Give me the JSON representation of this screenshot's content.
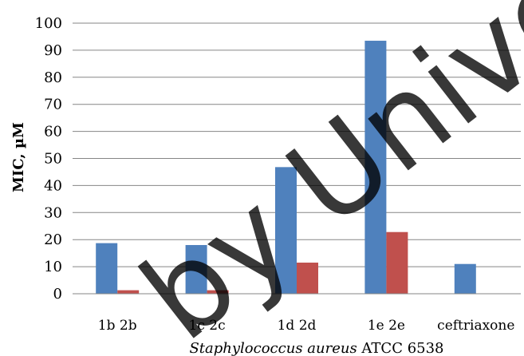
{
  "chart_data": {
    "type": "bar",
    "categories": [
      "1b 2b",
      "1c 2c",
      "1d 2d",
      "1e 2e",
      "ceftriaxone"
    ],
    "series": [
      {
        "color": "#4F81BD",
        "values": [
          18.7,
          18.0,
          46.8,
          93.5,
          11.0
        ]
      },
      {
        "color": "#C0504D",
        "values": [
          1.3,
          1.3,
          11.5,
          22.8,
          0
        ]
      }
    ],
    "title": "",
    "xlabel_italic": "Staphylococcus aureus",
    "xlabel_rest": " ATCC 6538",
    "ylabel": "MIC, µM",
    "ylim": [
      0,
      100
    ],
    "yticks": [
      "0",
      "10",
      "20",
      "30",
      "40",
      "50",
      "60",
      "70",
      "80",
      "90",
      "100"
    ],
    "grid": true,
    "legend": "none"
  },
  "watermark": {
    "text": "by Unive"
  }
}
